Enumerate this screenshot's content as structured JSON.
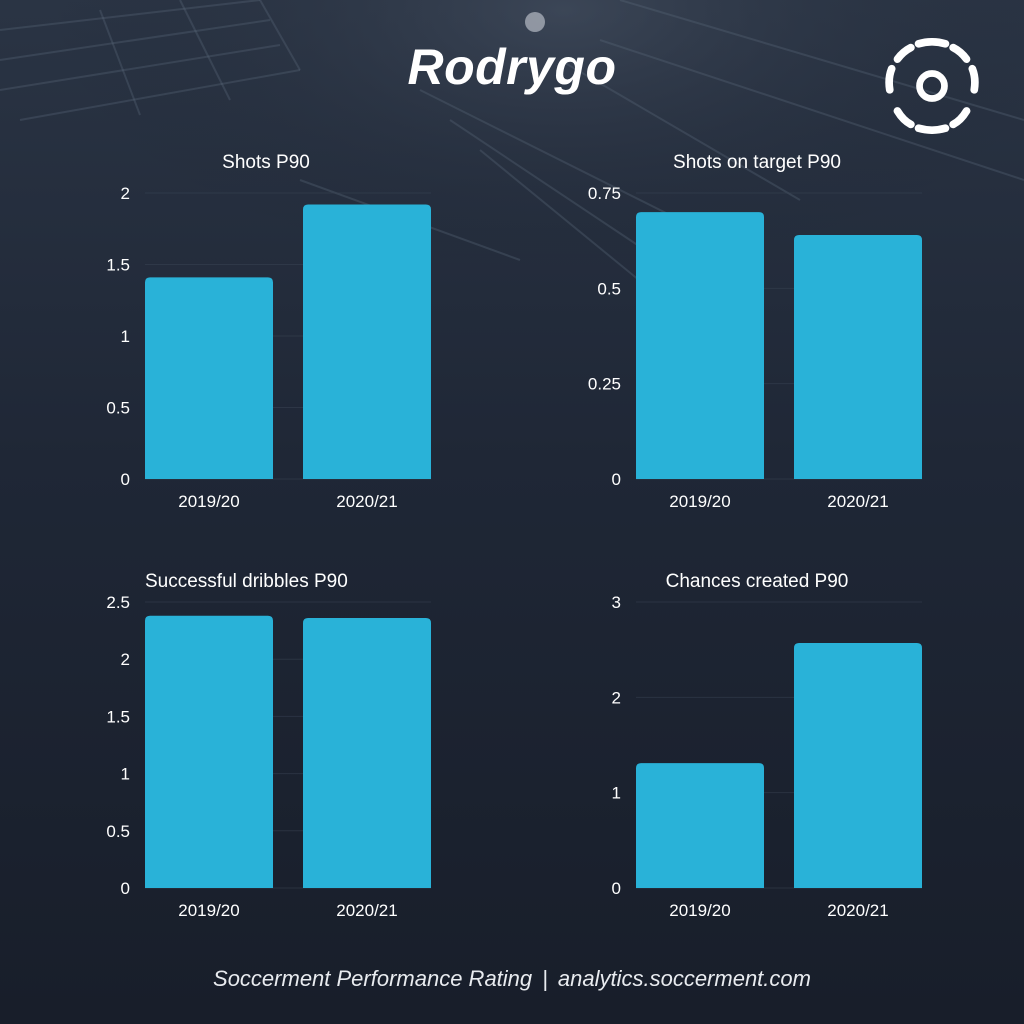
{
  "player_name": "Rodrygo",
  "logo": {
    "icon": "soccerment-ball-icon",
    "color": "#ffffff"
  },
  "colors": {
    "bar": "#29b2d8",
    "background": "#1b2230",
    "text": "#ffffff",
    "grid": "#3a4454"
  },
  "footer": {
    "left": "Soccerment Performance Rating",
    "separator": "|",
    "right": "analytics.soccerment.com"
  },
  "chart_data": [
    {
      "type": "bar",
      "title": "Shots P90",
      "categories": [
        "2019/20",
        "2020/21"
      ],
      "values": [
        1.41,
        1.92
      ],
      "yticks": [
        "0",
        "0.5",
        "1",
        "1.5",
        "2"
      ],
      "ylim": [
        0,
        2
      ],
      "xlabel": "",
      "ylabel": "",
      "grid": true
    },
    {
      "type": "bar",
      "title": "Shots on target P90",
      "categories": [
        "2019/20",
        "2020/21"
      ],
      "values": [
        0.7,
        0.64
      ],
      "yticks": [
        "0",
        "0.25",
        "0.5",
        "0.75"
      ],
      "ylim": [
        0,
        0.75
      ],
      "xlabel": "",
      "ylabel": "",
      "grid": true
    },
    {
      "type": "bar",
      "title": "Successful dribbles P90",
      "categories": [
        "2019/20",
        "2020/21"
      ],
      "values": [
        2.38,
        2.36
      ],
      "yticks": [
        "0",
        "0.5",
        "1",
        "1.5",
        "2",
        "2.5"
      ],
      "ylim": [
        0,
        2.5
      ],
      "xlabel": "",
      "ylabel": "",
      "grid": true
    },
    {
      "type": "bar",
      "title": "Chances created P90",
      "categories": [
        "2019/20",
        "2020/21"
      ],
      "values": [
        1.31,
        2.57
      ],
      "yticks": [
        "0",
        "1",
        "2",
        "3"
      ],
      "ylim": [
        0,
        3
      ],
      "xlabel": "",
      "ylabel": "",
      "grid": true
    }
  ]
}
